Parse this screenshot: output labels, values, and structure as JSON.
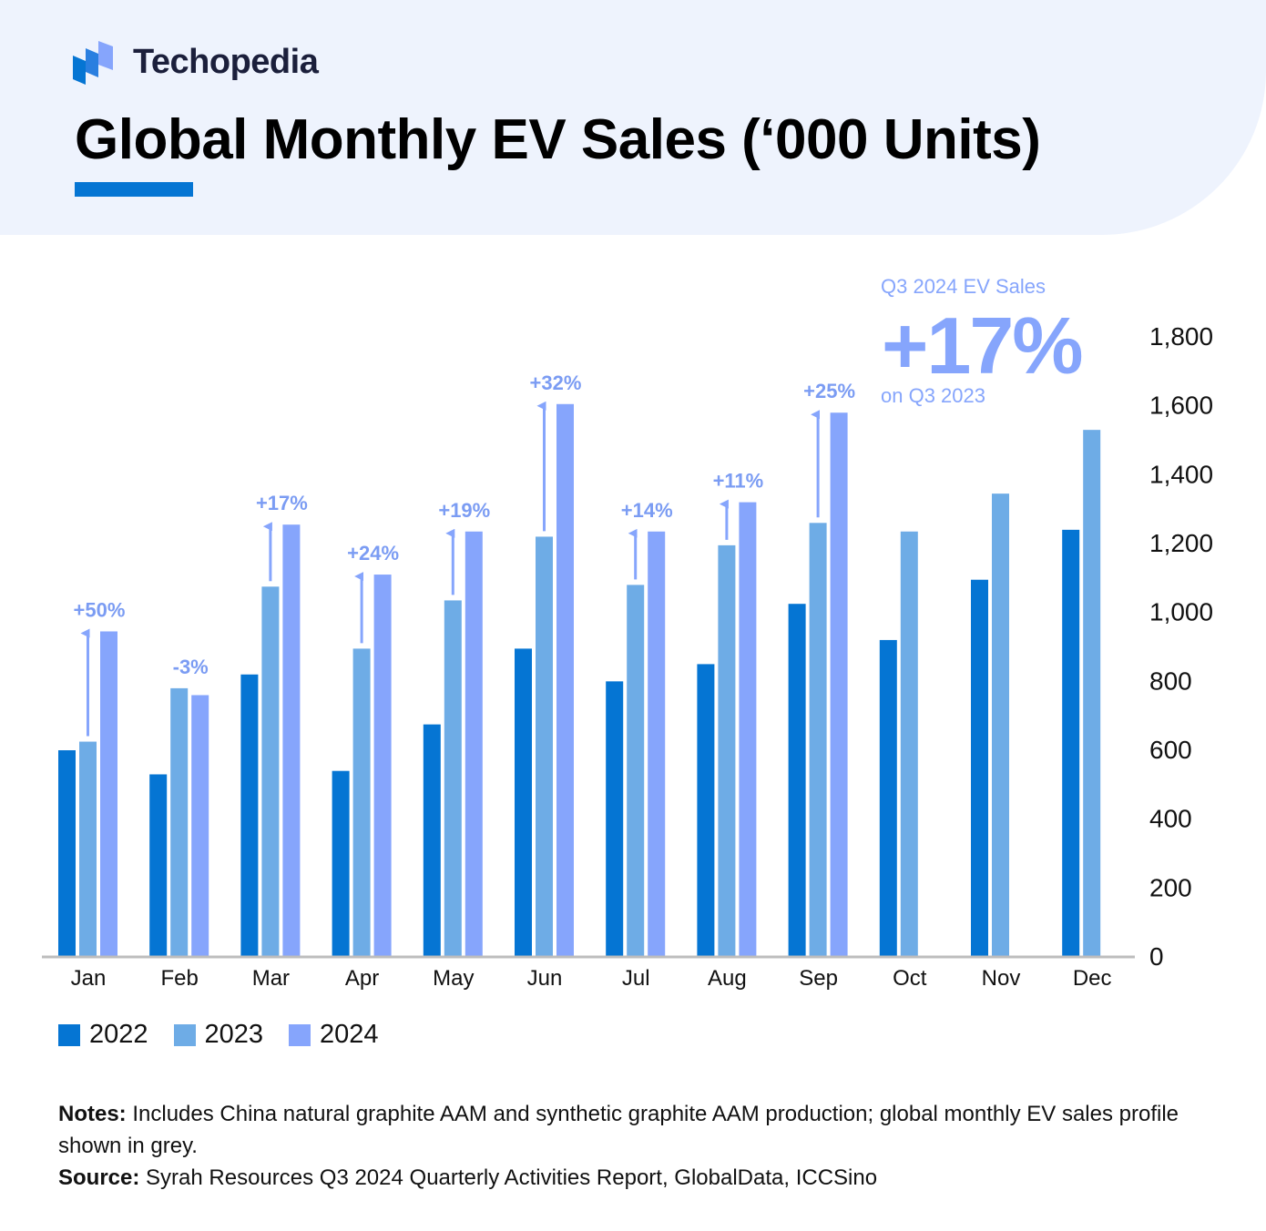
{
  "brand": {
    "name": "Techopedia"
  },
  "title": "Global Monthly EV Sales (‘000 Units)",
  "callout": {
    "label": "Q3 2024 EV Sales",
    "value": "+17%",
    "sub": "on Q3 2023"
  },
  "colors": {
    "y2022": "#0575d3",
    "y2023": "#6eace6",
    "y2024": "#86a5fc",
    "accent": "#0575d3",
    "header_bg": "#eef3fd"
  },
  "chart_data": {
    "type": "bar",
    "title": "Global Monthly EV Sales (‘000 Units)",
    "categories": [
      "Jan",
      "Feb",
      "Mar",
      "Apr",
      "May",
      "Jun",
      "Jul",
      "Aug",
      "Sep",
      "Oct",
      "Nov",
      "Dec"
    ],
    "series": [
      {
        "name": "2022",
        "values": [
          600,
          530,
          820,
          540,
          675,
          895,
          800,
          850,
          1025,
          920,
          1095,
          1240
        ]
      },
      {
        "name": "2023",
        "values": [
          625,
          780,
          1075,
          895,
          1035,
          1220,
          1080,
          1195,
          1260,
          1235,
          1345,
          1530
        ]
      },
      {
        "name": "2024",
        "values": [
          945,
          760,
          1255,
          1110,
          1235,
          1605,
          1235,
          1320,
          1580,
          null,
          null,
          null
        ]
      }
    ],
    "growth_labels": [
      "+50%",
      "-3%",
      "+17%",
      "+24%",
      "+19%",
      "+32%",
      "+14%",
      "+11%",
      "+25%",
      null,
      null,
      null
    ],
    "y_ticks": [
      "0",
      "200",
      "400",
      "600",
      "800",
      "1,000",
      "1,200",
      "1,400",
      "1,600",
      "1,800"
    ],
    "ylim": [
      0,
      1800
    ],
    "y_axis_side": "right",
    "grid": false,
    "xlabel": "",
    "ylabel": ""
  },
  "legend": [
    {
      "label": "2022",
      "color": "#0575d3"
    },
    {
      "label": "2023",
      "color": "#6eace6"
    },
    {
      "label": "2024",
      "color": "#86a5fc"
    }
  ],
  "notes": {
    "notes_label": "Notes:",
    "notes_text": "Includes China natural graphite AAM and synthetic graphite AAM production; global monthly EV sales profile shown in grey.",
    "source_label": "Source:",
    "source_text": "Syrah Resources Q3 2024 Quarterly Activities Report, GlobalData, ICCSino"
  }
}
